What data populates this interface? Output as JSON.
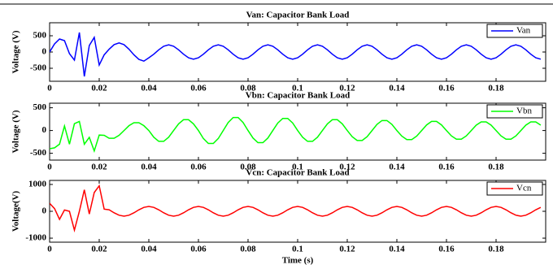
{
  "chart_data": [
    {
      "type": "line",
      "title": "Van: Capacitor Bank Load",
      "ylabel": "Voltage (V)",
      "x": [
        0,
        0.002,
        0.004,
        0.006,
        0.008,
        0.01,
        0.012,
        0.014,
        0.016,
        0.018,
        0.02,
        0.022,
        0.024,
        0.026,
        0.028,
        0.03,
        0.032,
        0.034,
        0.036,
        0.038,
        0.04,
        0.042,
        0.044,
        0.046,
        0.048,
        0.05,
        0.052,
        0.054,
        0.056,
        0.058,
        0.06,
        0.062,
        0.064,
        0.066,
        0.068,
        0.07,
        0.072,
        0.074,
        0.076,
        0.078,
        0.08,
        0.082,
        0.084,
        0.086,
        0.088,
        0.09,
        0.092,
        0.094,
        0.096,
        0.098,
        0.1,
        0.102,
        0.104,
        0.106,
        0.108,
        0.11,
        0.112,
        0.114,
        0.116,
        0.118,
        0.12,
        0.122,
        0.124,
        0.126,
        0.128,
        0.13,
        0.132,
        0.134,
        0.136,
        0.138,
        0.14,
        0.142,
        0.144,
        0.146,
        0.148,
        0.15,
        0.152,
        0.154,
        0.156,
        0.158,
        0.16,
        0.162,
        0.164,
        0.166,
        0.168,
        0.17,
        0.172,
        0.174,
        0.176,
        0.178,
        0.18,
        0.182,
        0.184,
        0.186,
        0.188,
        0.19,
        0.192,
        0.194,
        0.196,
        0.198
      ],
      "series": [
        {
          "name": "Van",
          "color": "#0000ff",
          "values": [
            0,
            250,
            400,
            350,
            -50,
            -250,
            600,
            -750,
            200,
            450,
            -400,
            -87,
            87,
            227,
            280,
            227,
            87,
            -87,
            -227,
            -280,
            -178,
            -68,
            68,
            178,
            220,
            178,
            68,
            -68,
            -178,
            -220,
            -178,
            -68,
            68,
            178,
            220,
            178,
            68,
            -68,
            -178,
            -220,
            -178,
            -68,
            68,
            178,
            220,
            178,
            68,
            -68,
            -178,
            -220,
            -178,
            -68,
            68,
            178,
            220,
            178,
            68,
            -68,
            -178,
            -220,
            -178,
            -68,
            68,
            178,
            220,
            178,
            68,
            -68,
            -178,
            -220,
            -178,
            -68,
            68,
            178,
            220,
            178,
            68,
            -68,
            -178,
            -220,
            -178,
            -68,
            68,
            178,
            220,
            178,
            68,
            -68,
            -178,
            -220,
            -178,
            -68,
            68,
            178,
            220,
            178,
            68,
            -68,
            -178,
            -220
          ]
        }
      ],
      "xlim": [
        0,
        0.2
      ],
      "ylim": [
        -900,
        900
      ],
      "xticks": [
        0,
        0.02,
        0.04,
        0.06,
        0.08,
        0.1,
        0.12,
        0.14,
        0.16,
        0.18
      ],
      "yticks": [
        -500,
        0,
        500
      ],
      "legend": "upper right"
    },
    {
      "type": "line",
      "title": "Vbn: Capacitor Bank Load",
      "ylabel": "Voltage (V)",
      "x": [
        0,
        0.002,
        0.004,
        0.006,
        0.008,
        0.01,
        0.012,
        0.014,
        0.016,
        0.018,
        0.02,
        0.022,
        0.024,
        0.026,
        0.028,
        0.03,
        0.032,
        0.034,
        0.036,
        0.038,
        0.04,
        0.042,
        0.044,
        0.046,
        0.048,
        0.05,
        0.052,
        0.054,
        0.056,
        0.058,
        0.06,
        0.062,
        0.064,
        0.066,
        0.068,
        0.07,
        0.072,
        0.074,
        0.076,
        0.078,
        0.08,
        0.082,
        0.084,
        0.086,
        0.088,
        0.09,
        0.092,
        0.094,
        0.096,
        0.098,
        0.1,
        0.102,
        0.104,
        0.106,
        0.108,
        0.11,
        0.112,
        0.114,
        0.116,
        0.118,
        0.12,
        0.122,
        0.124,
        0.126,
        0.128,
        0.13,
        0.132,
        0.134,
        0.136,
        0.138,
        0.14,
        0.142,
        0.144,
        0.146,
        0.148,
        0.15,
        0.152,
        0.154,
        0.156,
        0.158,
        0.16,
        0.162,
        0.164,
        0.166,
        0.168,
        0.17,
        0.172,
        0.174,
        0.176,
        0.178,
        0.18,
        0.182,
        0.184,
        0.186,
        0.188,
        0.19,
        0.192,
        0.194,
        0.196,
        0.198
      ],
      "series": [
        {
          "name": "Vbn",
          "color": "#00ff00",
          "values": [
            -400,
            -380,
            -300,
            100,
            -300,
            150,
            200,
            -300,
            -150,
            -450,
            -100,
            -106,
            -171,
            -171,
            -106,
            0,
            106,
            171,
            171,
            106,
            0,
            -147,
            -238,
            -238,
            -147,
            0,
            147,
            238,
            238,
            147,
            0,
            -176,
            -285,
            -285,
            -176,
            0,
            176,
            285,
            285,
            176,
            0,
            -165,
            -266,
            -266,
            -165,
            0,
            165,
            266,
            266,
            165,
            0,
            -147,
            -238,
            -238,
            -147,
            0,
            147,
            238,
            238,
            147,
            0,
            -135,
            -219,
            -219,
            -135,
            0,
            135,
            219,
            219,
            135,
            0,
            -123,
            -200,
            -200,
            -123,
            0,
            123,
            200,
            200,
            123,
            0,
            -118,
            -190,
            -190,
            -118,
            0,
            118,
            190,
            190,
            118,
            0,
            -118,
            -190,
            -190,
            -118,
            0,
            118,
            190,
            190,
            118
          ]
        }
      ],
      "xlim": [
        0,
        0.2
      ],
      "ylim": [
        -650,
        600
      ],
      "xticks": [
        0,
        0.02,
        0.04,
        0.06,
        0.08,
        0.1,
        0.12,
        0.14,
        0.16,
        0.18
      ],
      "yticks": [
        -500,
        0,
        500
      ],
      "legend": "upper right"
    },
    {
      "type": "line",
      "title": "Vcn: Capacitor Bank Load",
      "ylabel": "Voltage(V)",
      "xlabel": "Time (s)",
      "x": [
        0,
        0.002,
        0.004,
        0.006,
        0.008,
        0.01,
        0.012,
        0.014,
        0.016,
        0.018,
        0.02,
        0.022,
        0.024,
        0.026,
        0.028,
        0.03,
        0.032,
        0.034,
        0.036,
        0.038,
        0.04,
        0.042,
        0.044,
        0.046,
        0.048,
        0.05,
        0.052,
        0.054,
        0.056,
        0.058,
        0.06,
        0.062,
        0.064,
        0.066,
        0.068,
        0.07,
        0.072,
        0.074,
        0.076,
        0.078,
        0.08,
        0.082,
        0.084,
        0.086,
        0.088,
        0.09,
        0.092,
        0.094,
        0.096,
        0.098,
        0.1,
        0.102,
        0.104,
        0.106,
        0.108,
        0.11,
        0.112,
        0.114,
        0.116,
        0.118,
        0.12,
        0.122,
        0.124,
        0.126,
        0.128,
        0.13,
        0.132,
        0.134,
        0.136,
        0.138,
        0.14,
        0.142,
        0.144,
        0.146,
        0.148,
        0.15,
        0.152,
        0.154,
        0.156,
        0.158,
        0.16,
        0.162,
        0.164,
        0.166,
        0.168,
        0.17,
        0.172,
        0.174,
        0.176,
        0.178,
        0.18,
        0.182,
        0.184,
        0.186,
        0.188,
        0.19,
        0.192,
        0.194,
        0.196,
        0.198
      ],
      "series": [
        {
          "name": "Vcn",
          "color": "#ff0000",
          "values": [
            300,
            100,
            -300,
            50,
            0,
            -700,
            0,
            800,
            -100,
            700,
            950,
            80,
            56,
            -56,
            -146,
            -180,
            -146,
            -56,
            56,
            146,
            180,
            146,
            56,
            -56,
            -146,
            -180,
            -146,
            -56,
            56,
            146,
            180,
            146,
            56,
            -56,
            -146,
            -180,
            -146,
            -56,
            56,
            146,
            180,
            146,
            56,
            -56,
            -146,
            -180,
            -146,
            -56,
            56,
            146,
            180,
            146,
            56,
            -56,
            -146,
            -180,
            -146,
            -56,
            56,
            146,
            180,
            146,
            56,
            -56,
            -146,
            -180,
            -146,
            -56,
            56,
            146,
            180,
            146,
            56,
            -56,
            -146,
            -180,
            -146,
            -56,
            56,
            146,
            180,
            146,
            56,
            -56,
            -146,
            -180,
            -146,
            -56,
            56,
            146,
            180,
            146,
            56,
            -56,
            -146,
            -180,
            -146,
            -56,
            56,
            146
          ]
        }
      ],
      "xlim": [
        0,
        0.2
      ],
      "ylim": [
        -1150,
        1150
      ],
      "xticks": [
        0,
        0.02,
        0.04,
        0.06,
        0.08,
        0.1,
        0.12,
        0.14,
        0.16,
        0.18
      ],
      "yticks": [
        -1000,
        0,
        1000
      ],
      "legend": "upper right"
    }
  ]
}
